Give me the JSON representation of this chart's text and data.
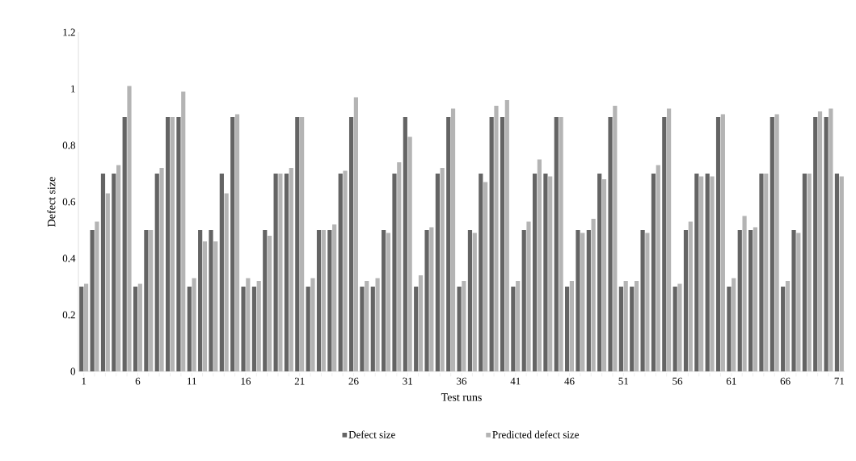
{
  "chart_data": {
    "type": "bar",
    "xlabel": "Test runs",
    "ylabel": "Defect size",
    "categories": [
      "1",
      null,
      null,
      null,
      null,
      "6",
      null,
      null,
      null,
      null,
      "11",
      null,
      null,
      null,
      null,
      "16",
      null,
      null,
      null,
      null,
      "21",
      null,
      null,
      null,
      null,
      "26",
      null,
      null,
      null,
      null,
      "31",
      null,
      null,
      null,
      null,
      "36",
      null,
      null,
      null,
      null,
      "41",
      null,
      null,
      null,
      null,
      "46",
      null,
      null,
      null,
      null,
      "51",
      null,
      null,
      null,
      null,
      "56",
      null,
      null,
      null,
      null,
      "61",
      null,
      null,
      null,
      null,
      "66",
      null,
      null,
      null,
      null,
      "71"
    ],
    "series": [
      {
        "name": "Defect size",
        "color": "#646464",
        "values": [
          0.3,
          0.5,
          0.7,
          0.7,
          0.9,
          0.3,
          0.5,
          0.7,
          0.9,
          0.9,
          0.3,
          0.5,
          0.5,
          0.7,
          0.9,
          0.3,
          0.3,
          0.5,
          0.7,
          0.7,
          0.9,
          0.3,
          0.5,
          0.5,
          0.7,
          0.9,
          0.3,
          0.3,
          0.5,
          0.7,
          0.9,
          0.3,
          0.5,
          0.7,
          0.9,
          0.3,
          0.5,
          0.7,
          0.9,
          0.9,
          0.3,
          0.5,
          0.7,
          0.7,
          0.9,
          0.3,
          0.5,
          0.5,
          0.7,
          0.9,
          0.3,
          0.3,
          0.5,
          0.7,
          0.9,
          0.3,
          0.5,
          0.7,
          0.7,
          0.9,
          0.3,
          0.5,
          0.5,
          0.7,
          0.9,
          0.3,
          0.5,
          0.7,
          0.9,
          0.9,
          0.7
        ]
      },
      {
        "name": "Predicted defect size",
        "color": "#b4b4b4",
        "values": [
          0.31,
          0.53,
          0.63,
          0.73,
          1.01,
          0.31,
          0.5,
          0.72,
          0.9,
          0.99,
          0.33,
          0.46,
          0.46,
          0.63,
          0.91,
          0.33,
          0.32,
          0.48,
          0.7,
          0.72,
          0.9,
          0.33,
          0.5,
          0.52,
          0.71,
          0.97,
          0.32,
          0.33,
          0.49,
          0.74,
          0.83,
          0.34,
          0.51,
          0.72,
          0.93,
          0.32,
          0.49,
          0.67,
          0.94,
          0.96,
          0.32,
          0.53,
          0.75,
          0.69,
          0.9,
          0.32,
          0.49,
          0.54,
          0.68,
          0.94,
          0.32,
          0.32,
          0.49,
          0.73,
          0.93,
          0.31,
          0.53,
          0.69,
          0.69,
          0.91,
          0.33,
          0.55,
          0.51,
          0.7,
          0.91,
          0.32,
          0.49,
          0.7,
          0.92,
          0.93,
          0.69
        ]
      }
    ],
    "ylim": [
      0,
      1.2
    ],
    "yticks": [
      0,
      0.2,
      0.4,
      0.6,
      0.8,
      1,
      1.2
    ],
    "grid": false,
    "legend": "bottom"
  }
}
